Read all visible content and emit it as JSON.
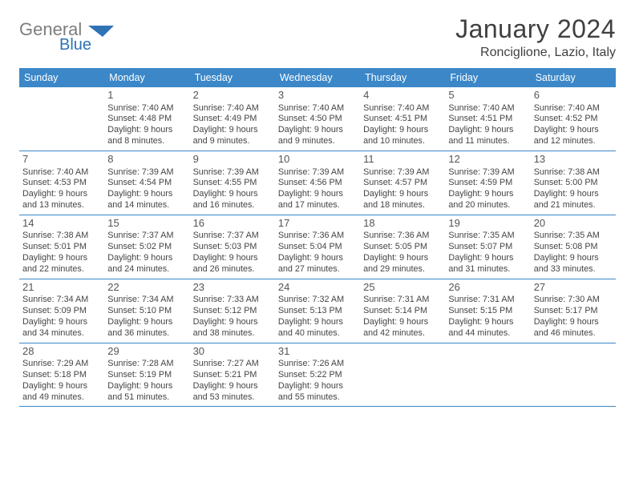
{
  "colors": {
    "header_bg": "#3b87c8",
    "header_text": "#ffffff",
    "week_border": "#3b87c8",
    "body_text": "#444444",
    "title_text": "#404040",
    "daynum_text": "#555555",
    "background": "#ffffff",
    "logo_gray": "#7d7d7d",
    "logo_blue": "#2f72b5"
  },
  "typography": {
    "title_fontsize": 32,
    "location_fontsize": 16,
    "header_fontsize": 12.5,
    "body_fontsize": 10.8,
    "daynum_fontsize": 13
  },
  "logo": {
    "text1": "General",
    "text2": "Blue"
  },
  "title": "January 2024",
  "location": "Ronciglione, Lazio, Italy",
  "day_headers": [
    "Sunday",
    "Monday",
    "Tuesday",
    "Wednesday",
    "Thursday",
    "Friday",
    "Saturday"
  ],
  "labels": {
    "sunrise": "Sunrise:",
    "sunset": "Sunset:",
    "daylight": "Daylight:"
  },
  "weeks": [
    [
      {
        "blank": true
      },
      {
        "n": "1",
        "sunrise": "7:40 AM",
        "sunset": "4:48 PM",
        "daylight": "9 hours and 8 minutes."
      },
      {
        "n": "2",
        "sunrise": "7:40 AM",
        "sunset": "4:49 PM",
        "daylight": "9 hours and 9 minutes."
      },
      {
        "n": "3",
        "sunrise": "7:40 AM",
        "sunset": "4:50 PM",
        "daylight": "9 hours and 9 minutes."
      },
      {
        "n": "4",
        "sunrise": "7:40 AM",
        "sunset": "4:51 PM",
        "daylight": "9 hours and 10 minutes."
      },
      {
        "n": "5",
        "sunrise": "7:40 AM",
        "sunset": "4:51 PM",
        "daylight": "9 hours and 11 minutes."
      },
      {
        "n": "6",
        "sunrise": "7:40 AM",
        "sunset": "4:52 PM",
        "daylight": "9 hours and 12 minutes."
      }
    ],
    [
      {
        "n": "7",
        "sunrise": "7:40 AM",
        "sunset": "4:53 PM",
        "daylight": "9 hours and 13 minutes."
      },
      {
        "n": "8",
        "sunrise": "7:39 AM",
        "sunset": "4:54 PM",
        "daylight": "9 hours and 14 minutes."
      },
      {
        "n": "9",
        "sunrise": "7:39 AM",
        "sunset": "4:55 PM",
        "daylight": "9 hours and 16 minutes."
      },
      {
        "n": "10",
        "sunrise": "7:39 AM",
        "sunset": "4:56 PM",
        "daylight": "9 hours and 17 minutes."
      },
      {
        "n": "11",
        "sunrise": "7:39 AM",
        "sunset": "4:57 PM",
        "daylight": "9 hours and 18 minutes."
      },
      {
        "n": "12",
        "sunrise": "7:39 AM",
        "sunset": "4:59 PM",
        "daylight": "9 hours and 20 minutes."
      },
      {
        "n": "13",
        "sunrise": "7:38 AM",
        "sunset": "5:00 PM",
        "daylight": "9 hours and 21 minutes."
      }
    ],
    [
      {
        "n": "14",
        "sunrise": "7:38 AM",
        "sunset": "5:01 PM",
        "daylight": "9 hours and 22 minutes."
      },
      {
        "n": "15",
        "sunrise": "7:37 AM",
        "sunset": "5:02 PM",
        "daylight": "9 hours and 24 minutes."
      },
      {
        "n": "16",
        "sunrise": "7:37 AM",
        "sunset": "5:03 PM",
        "daylight": "9 hours and 26 minutes."
      },
      {
        "n": "17",
        "sunrise": "7:36 AM",
        "sunset": "5:04 PM",
        "daylight": "9 hours and 27 minutes."
      },
      {
        "n": "18",
        "sunrise": "7:36 AM",
        "sunset": "5:05 PM",
        "daylight": "9 hours and 29 minutes."
      },
      {
        "n": "19",
        "sunrise": "7:35 AM",
        "sunset": "5:07 PM",
        "daylight": "9 hours and 31 minutes."
      },
      {
        "n": "20",
        "sunrise": "7:35 AM",
        "sunset": "5:08 PM",
        "daylight": "9 hours and 33 minutes."
      }
    ],
    [
      {
        "n": "21",
        "sunrise": "7:34 AM",
        "sunset": "5:09 PM",
        "daylight": "9 hours and 34 minutes."
      },
      {
        "n": "22",
        "sunrise": "7:34 AM",
        "sunset": "5:10 PM",
        "daylight": "9 hours and 36 minutes."
      },
      {
        "n": "23",
        "sunrise": "7:33 AM",
        "sunset": "5:12 PM",
        "daylight": "9 hours and 38 minutes."
      },
      {
        "n": "24",
        "sunrise": "7:32 AM",
        "sunset": "5:13 PM",
        "daylight": "9 hours and 40 minutes."
      },
      {
        "n": "25",
        "sunrise": "7:31 AM",
        "sunset": "5:14 PM",
        "daylight": "9 hours and 42 minutes."
      },
      {
        "n": "26",
        "sunrise": "7:31 AM",
        "sunset": "5:15 PM",
        "daylight": "9 hours and 44 minutes."
      },
      {
        "n": "27",
        "sunrise": "7:30 AM",
        "sunset": "5:17 PM",
        "daylight": "9 hours and 46 minutes."
      }
    ],
    [
      {
        "n": "28",
        "sunrise": "7:29 AM",
        "sunset": "5:18 PM",
        "daylight": "9 hours and 49 minutes."
      },
      {
        "n": "29",
        "sunrise": "7:28 AM",
        "sunset": "5:19 PM",
        "daylight": "9 hours and 51 minutes."
      },
      {
        "n": "30",
        "sunrise": "7:27 AM",
        "sunset": "5:21 PM",
        "daylight": "9 hours and 53 minutes."
      },
      {
        "n": "31",
        "sunrise": "7:26 AM",
        "sunset": "5:22 PM",
        "daylight": "9 hours and 55 minutes."
      },
      {
        "blank": true
      },
      {
        "blank": true
      },
      {
        "blank": true
      }
    ]
  ]
}
